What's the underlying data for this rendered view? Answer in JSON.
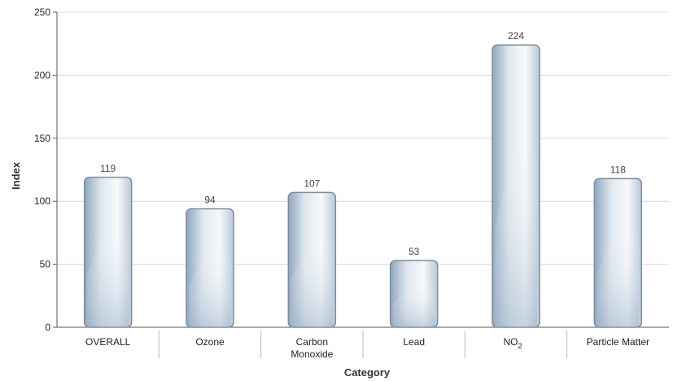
{
  "chart_data": {
    "type": "bar",
    "categories": [
      "OVERALL",
      "Ozone",
      "Carbon Monoxide",
      "Lead",
      "NO2",
      "Particle Matter"
    ],
    "category_display": [
      [
        "OVERALL"
      ],
      [
        "Ozone"
      ],
      [
        "Carbon",
        "Monoxide"
      ],
      [
        "Lead"
      ],
      [
        "NO",
        "2"
      ],
      [
        "Particle Matter"
      ]
    ],
    "values": [
      119,
      94,
      107,
      53,
      224,
      118
    ],
    "data_labels": [
      "119",
      "94",
      "107",
      "53",
      "224",
      "118"
    ],
    "xlabel": "Category",
    "ylabel": "Index",
    "ylim": [
      0,
      250
    ],
    "yticks": [
      0,
      50,
      100,
      150,
      200,
      250
    ],
    "grid": true,
    "colors": {
      "bar_fill_light": "#f4f7fb",
      "bar_fill_dark": "#9fb4ca",
      "bar_stroke": "#7f8c98",
      "grid": "#d9d9d9",
      "axis": "#555555"
    }
  }
}
